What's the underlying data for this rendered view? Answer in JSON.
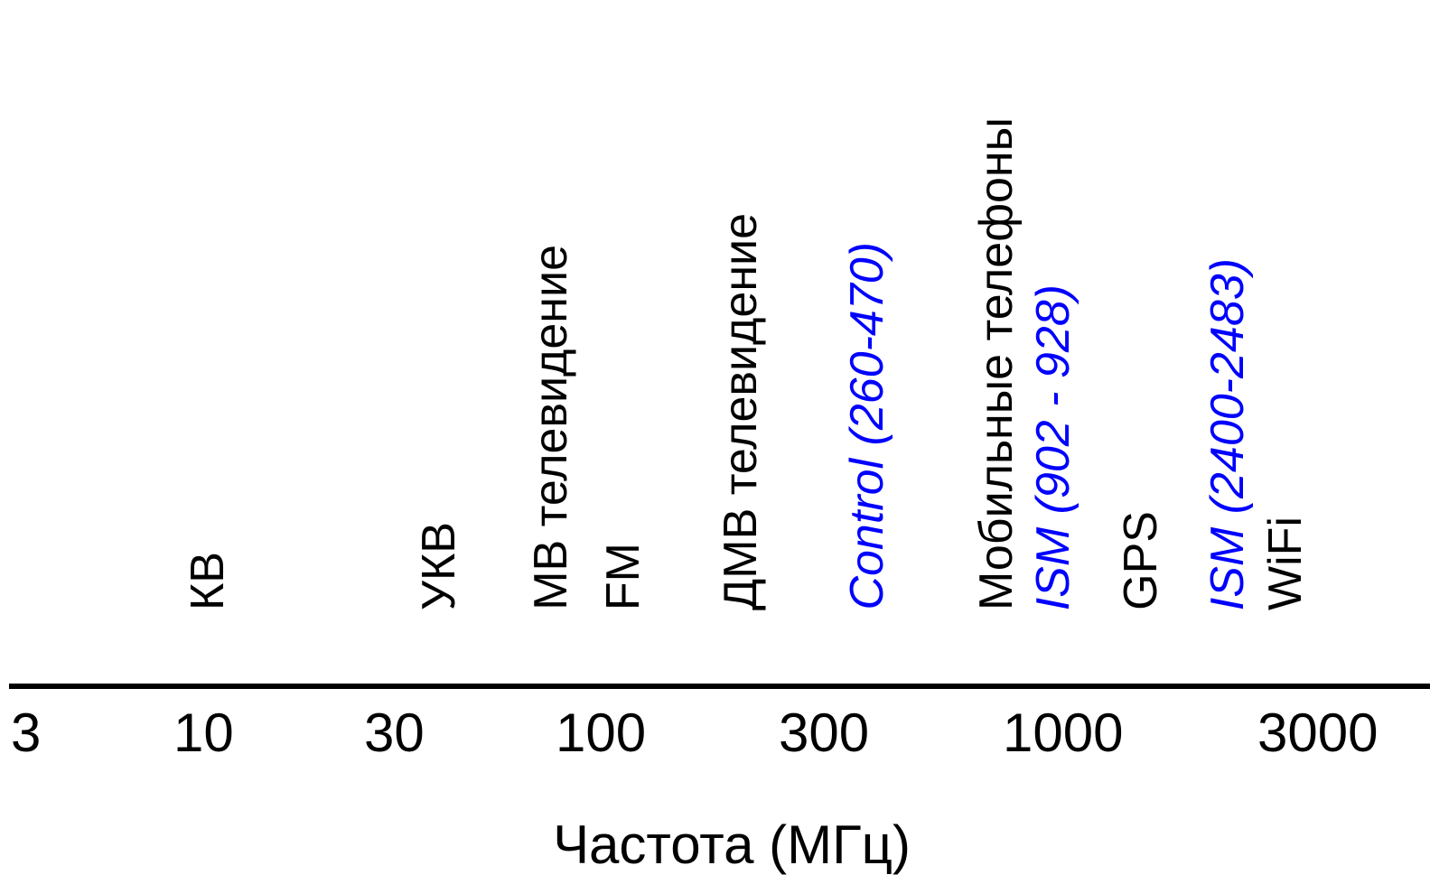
{
  "colors": {
    "black": "#000000",
    "ism_blue": "#0000ff"
  },
  "chart_data": {
    "type": "frequency-scale",
    "xlabel": "Частота (МГц)",
    "scale": "log",
    "xlim": [
      3,
      4000
    ],
    "ticks": [
      "3",
      "10",
      "30",
      "100",
      "300",
      "1000",
      "3000"
    ],
    "bands": [
      {
        "label": "КВ",
        "color": "#000000",
        "italic": false
      },
      {
        "label": "УКВ",
        "color": "#000000",
        "italic": false
      },
      {
        "label": "МВ телевидение",
        "color": "#000000",
        "italic": false
      },
      {
        "label": "FM",
        "color": "#000000",
        "italic": false
      },
      {
        "label": "ДМВ телевидение",
        "color": "#000000",
        "italic": false
      },
      {
        "label": "Control (260-470)",
        "color": "#0000ff",
        "italic": true
      },
      {
        "label": "Мобильные телефоны",
        "color": "#000000",
        "italic": false
      },
      {
        "label": "ISM (902 - 928)",
        "color": "#0000ff",
        "italic": true
      },
      {
        "label": "GPS",
        "color": "#000000",
        "italic": false
      },
      {
        "label": "ISM (2400-2483)",
        "color": "#0000ff",
        "italic": true
      },
      {
        "label": "WiFi",
        "color": "#000000",
        "italic": false
      }
    ]
  }
}
